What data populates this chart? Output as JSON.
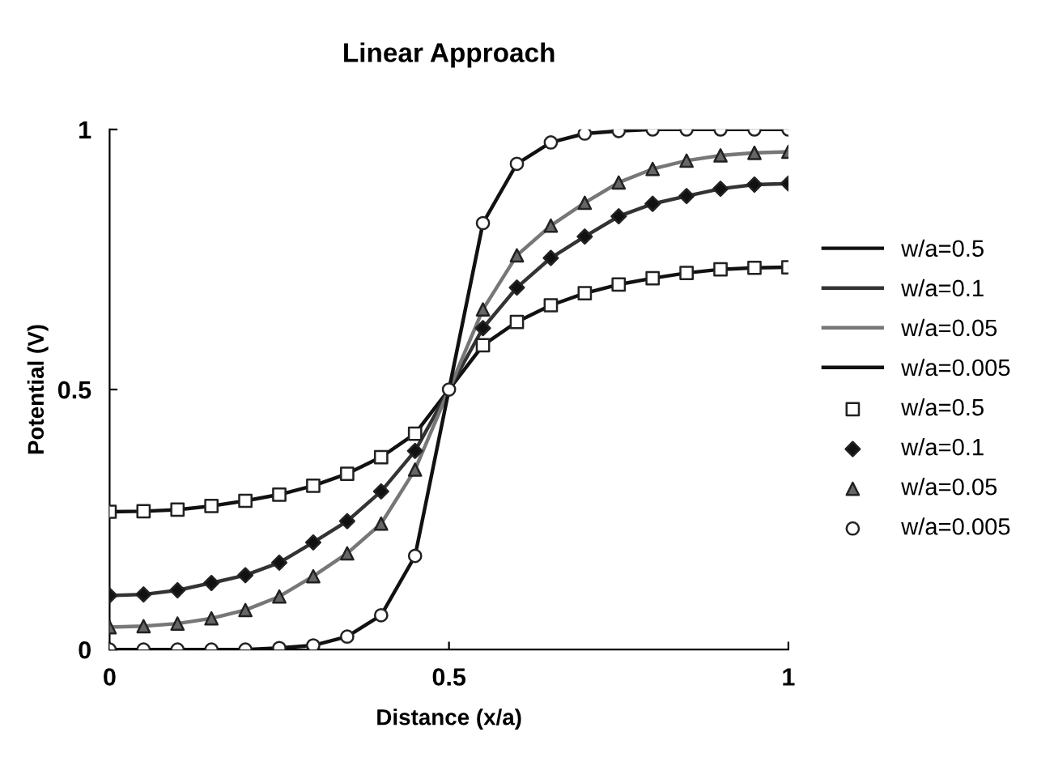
{
  "chart_data": {
    "type": "line",
    "title": "Linear Approach",
    "xlabel": "Distance (x/a)",
    "ylabel": "Potential (V)",
    "x": [
      0,
      0.05,
      0.1,
      0.15,
      0.2,
      0.25,
      0.3,
      0.35,
      0.4,
      0.45,
      0.5,
      0.55,
      0.6,
      0.65,
      0.7,
      0.75,
      0.8,
      0.85,
      0.9,
      0.95,
      1
    ],
    "series": [
      {
        "name": "w/a=0.5",
        "color": "#111111",
        "values": [
          0.265,
          0.266,
          0.269,
          0.276,
          0.286,
          0.298,
          0.315,
          0.338,
          0.37,
          0.415,
          0.5,
          0.585,
          0.63,
          0.662,
          0.685,
          0.702,
          0.714,
          0.724,
          0.731,
          0.734,
          0.735
        ]
      },
      {
        "name": "w/a=0.1",
        "color": "#333333",
        "values": [
          0.104,
          0.106,
          0.114,
          0.128,
          0.143,
          0.167,
          0.206,
          0.247,
          0.304,
          0.382,
          0.5,
          0.618,
          0.696,
          0.753,
          0.794,
          0.833,
          0.857,
          0.872,
          0.886,
          0.894,
          0.896
        ]
      },
      {
        "name": "w/a=0.05",
        "color": "#777777",
        "values": [
          0.043,
          0.045,
          0.05,
          0.06,
          0.076,
          0.102,
          0.141,
          0.185,
          0.242,
          0.346,
          0.5,
          0.654,
          0.758,
          0.815,
          0.859,
          0.898,
          0.924,
          0.94,
          0.95,
          0.955,
          0.957
        ]
      },
      {
        "name": "w/a=0.005",
        "color": "#111111",
        "values": [
          0,
          0,
          0,
          0,
          0,
          0.003,
          0.008,
          0.025,
          0.066,
          0.18,
          0.5,
          0.82,
          0.934,
          0.975,
          0.992,
          0.997,
          1,
          1,
          1,
          1,
          1
        ]
      },
      {
        "name": "w/a=0.5",
        "type": "scatter",
        "marker": "square",
        "color": "#ffffff",
        "values": [
          0.265,
          0.266,
          0.269,
          0.276,
          0.286,
          0.298,
          0.315,
          0.338,
          0.37,
          0.415,
          null,
          0.585,
          0.63,
          0.662,
          0.685,
          0.702,
          0.714,
          0.724,
          0.731,
          0.734,
          0.735
        ]
      },
      {
        "name": "w/a=0.1",
        "type": "scatter",
        "marker": "diamond",
        "color": "#111111",
        "values": [
          0.104,
          0.106,
          0.114,
          0.128,
          0.143,
          0.167,
          0.206,
          0.247,
          0.304,
          0.382,
          null,
          0.618,
          0.696,
          0.753,
          0.794,
          0.833,
          0.857,
          0.872,
          0.886,
          0.894,
          0.896
        ]
      },
      {
        "name": "w/a=0.05",
        "type": "scatter",
        "marker": "triangle",
        "color": "#666666",
        "values": [
          0.043,
          0.045,
          0.05,
          0.06,
          0.076,
          0.102,
          0.141,
          0.185,
          0.242,
          0.346,
          null,
          0.654,
          0.758,
          0.815,
          0.859,
          0.898,
          0.924,
          0.94,
          0.95,
          0.955,
          0.957
        ]
      },
      {
        "name": "w/a=0.005",
        "type": "scatter",
        "marker": "circle",
        "color": "#ffffff",
        "values": [
          0,
          0,
          0,
          0,
          0,
          0.003,
          0.008,
          0.025,
          0.066,
          0.18,
          0.5,
          0.82,
          0.934,
          0.975,
          0.992,
          0.997,
          1,
          1,
          1,
          1,
          1
        ]
      }
    ],
    "xlim": [
      0,
      1
    ],
    "ylim": [
      0,
      1
    ],
    "xticks": [
      0,
      0.5,
      1
    ],
    "yticks": [
      0,
      0.5,
      1
    ],
    "grid": false,
    "legend": "right"
  }
}
